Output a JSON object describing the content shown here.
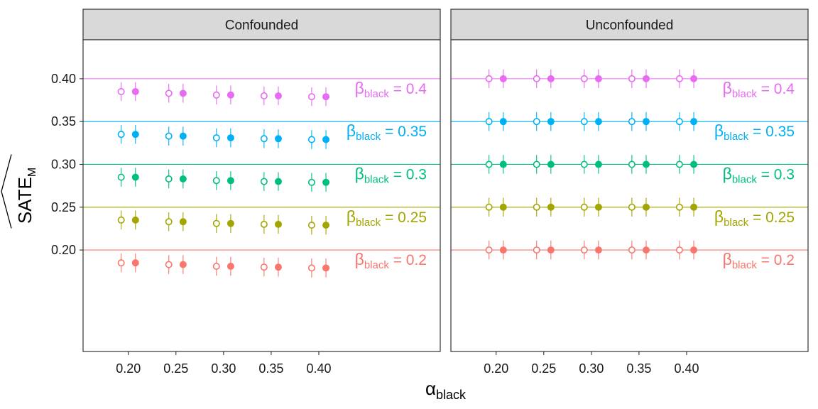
{
  "chart_data": {
    "type": "scatter",
    "x_axis_title": {
      "main": "α",
      "sub": "black"
    },
    "y_axis_title": {
      "main": "SATE",
      "sub": "M",
      "hat": true
    },
    "x_ticks": [
      0.2,
      0.25,
      0.3,
      0.35,
      0.4
    ],
    "x_tick_labels": [
      "0.20",
      "0.25",
      "0.30",
      "0.35",
      "0.40"
    ],
    "y_ticks": [
      0.2,
      0.25,
      0.3,
      0.35,
      0.4
    ],
    "y_tick_labels": [
      "0.20",
      "0.25",
      "0.30",
      "0.35",
      "0.40"
    ],
    "xlim": [
      0.1525,
      0.5275
    ],
    "ylim": [
      0.0815,
      0.4455
    ],
    "grid": false,
    "point_offset": 0.0075,
    "error_half_width": 0.011,
    "marker_fill": {
      "open": "hollow",
      "filled": "solid"
    },
    "beta_label_prefix": {
      "main": "β",
      "sub": "black",
      "eq": " = "
    },
    "series": [
      {
        "beta": 0.2,
        "label": "0.2",
        "color": "#F8766D"
      },
      {
        "beta": 0.25,
        "label": "0.25",
        "color": "#A3A500"
      },
      {
        "beta": 0.3,
        "label": "0.3",
        "color": "#00BF7D"
      },
      {
        "beta": 0.35,
        "label": "0.35",
        "color": "#00B0F6"
      },
      {
        "beta": 0.4,
        "label": "0.4",
        "color": "#E76BF3"
      }
    ],
    "panels": [
      {
        "title": "Confounded",
        "alphas": [
          0.2,
          0.25,
          0.3,
          0.35,
          0.4
        ],
        "estimates": {
          "0.2": [
            0.185,
            0.183,
            0.181,
            0.18,
            0.179
          ],
          "0.25": [
            0.235,
            0.233,
            0.231,
            0.23,
            0.229
          ],
          "0.3": [
            0.285,
            0.283,
            0.281,
            0.28,
            0.279
          ],
          "0.35": [
            0.335,
            0.333,
            0.331,
            0.33,
            0.329
          ],
          "0.4": [
            0.385,
            0.383,
            0.381,
            0.38,
            0.379
          ]
        }
      },
      {
        "title": "Unconfounded",
        "alphas": [
          0.2,
          0.25,
          0.3,
          0.35,
          0.4
        ],
        "estimates": {
          "0.2": [
            0.2,
            0.2,
            0.2,
            0.2,
            0.2
          ],
          "0.25": [
            0.25,
            0.25,
            0.25,
            0.25,
            0.25
          ],
          "0.3": [
            0.3,
            0.3,
            0.3,
            0.3,
            0.3
          ],
          "0.35": [
            0.35,
            0.35,
            0.35,
            0.35,
            0.35
          ],
          "0.4": [
            0.4,
            0.4,
            0.4,
            0.4,
            0.4
          ]
        }
      }
    ]
  }
}
